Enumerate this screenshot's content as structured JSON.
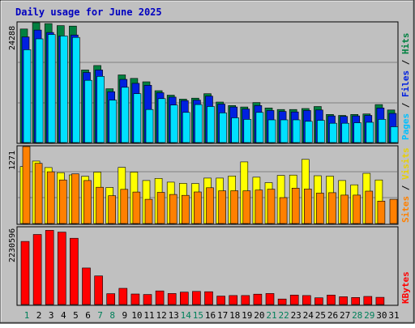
{
  "chart_data": {
    "type": "bar",
    "title": "Daily usage for June 2025",
    "categories": [
      "1",
      "2",
      "3",
      "4",
      "5",
      "6",
      "7",
      "8",
      "9",
      "10",
      "11",
      "12",
      "13",
      "14",
      "15",
      "16",
      "17",
      "18",
      "19",
      "20",
      "21",
      "22",
      "23",
      "24",
      "25",
      "26",
      "27",
      "28",
      "29",
      "30",
      "31"
    ],
    "weekend_days": [
      "1",
      "7",
      "8",
      "14",
      "15",
      "21",
      "22",
      "28",
      "29"
    ],
    "panels": [
      {
        "id": "hits",
        "max_label": "24288",
        "ylim": [
          0,
          24288
        ],
        "legend": [
          "Pages",
          "Files",
          "Hits"
        ],
        "series": [
          {
            "name": "Hits",
            "color": "#008040",
            "values": [
              23000,
              24288,
              24100,
              23700,
              23600,
              14700,
              15600,
              10900,
              13700,
              13000,
              12300,
              10500,
              9600,
              8800,
              9000,
              9900,
              8200,
              7500,
              7200,
              8100,
              7000,
              6700,
              6700,
              6900,
              7300,
              5700,
              5500,
              5700,
              5800,
              7700,
              6600
            ]
          },
          {
            "name": "Files",
            "color": "#0020E0",
            "values": [
              21400,
              22800,
              22300,
              21600,
              21800,
              14200,
              14700,
              10300,
              12800,
              12000,
              11600,
              10100,
              9200,
              8500,
              8600,
              9400,
              7800,
              7200,
              6800,
              7500,
              6500,
              6300,
              6200,
              6500,
              6600,
              5400,
              5300,
              5400,
              5500,
              7000,
              5900
            ]
          },
          {
            "name": "Pages",
            "color": "#00E0FF",
            "values": [
              18800,
              21000,
              21900,
              21600,
              21300,
              12600,
              13400,
              8600,
              11200,
              9900,
              6700,
              8900,
              7600,
              6100,
              7700,
              7300,
              6000,
              5000,
              4700,
              6100,
              4600,
              4600,
              4600,
              4300,
              4500,
              3900,
              3900,
              4000,
              4100,
              4700,
              3200
            ]
          }
        ]
      },
      {
        "id": "visits",
        "max_label": "1271",
        "ylim": [
          0,
          1271
        ],
        "legend": [
          "Sites",
          "Visits"
        ],
        "series": [
          {
            "name": "Visits",
            "color": "#FFFF00",
            "values": [
              940,
              1031,
              925,
              840,
              803,
              780,
              850,
              595,
              927,
              850,
              710,
              745,
              684,
              663,
              661,
              750,
              750,
              785,
              1018,
              765,
              675,
              795,
              800,
              1060,
              790,
              783,
              710,
              640,
              830,
              720,
              0
            ]
          },
          {
            "name": "Sites",
            "color": "#FF8000",
            "values": [
              1271,
              994,
              855,
              720,
              820,
              710,
              600,
              460,
              565,
              520,
              400,
              515,
              480,
              465,
              522,
              592,
              540,
              542,
              540,
              553,
              567,
              428,
              585,
              570,
              503,
              510,
              470,
              470,
              535,
              370,
              400
            ]
          }
        ]
      },
      {
        "id": "kbytes",
        "max_label": "2230596",
        "ylim": [
          0,
          2230596
        ],
        "legend": [
          "KBytes"
        ],
        "series": [
          {
            "name": "KBytes",
            "color": "#FF0000",
            "values": [
              1830000,
              2030000,
              2150000,
              2100000,
              1920000,
              1060000,
              830000,
              315000,
              470000,
              305000,
              290000,
              395000,
              320000,
              360000,
              380000,
              370000,
              245000,
              260000,
              260000,
              300000,
              320000,
              160000,
              275000,
              260000,
              195000,
              275000,
              225000,
              205000,
              235000,
              210000,
              0
            ]
          }
        ]
      }
    ]
  }
}
